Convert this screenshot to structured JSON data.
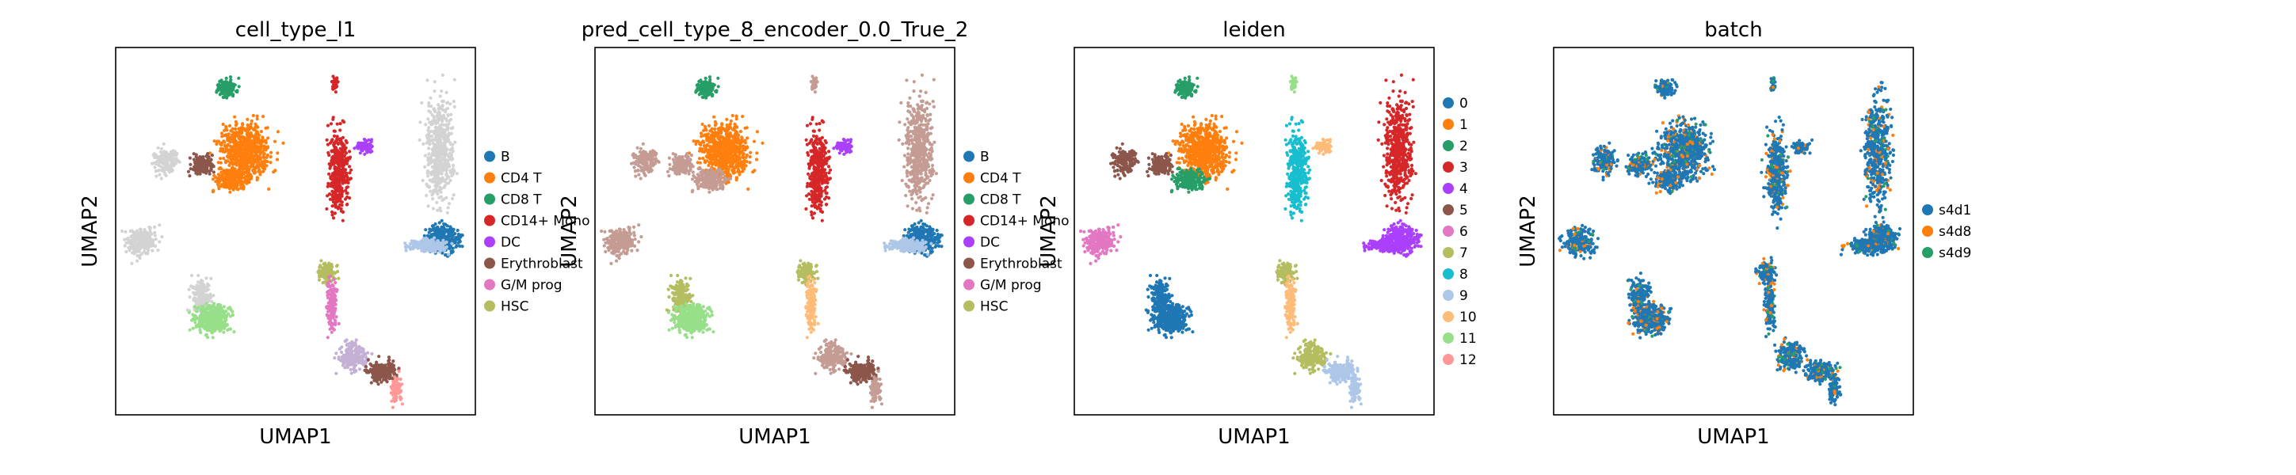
{
  "figure": {
    "background": "#ffffff"
  },
  "panels": [
    {
      "title": "cell_type_l1",
      "xlabel": "UMAP1",
      "ylabel": "UMAP2"
    },
    {
      "title": "pred_cell_type_8_encoder_0.0_True_2",
      "xlabel": "UMAP1",
      "ylabel": "UMAP2"
    },
    {
      "title": "leiden",
      "xlabel": "UMAP1",
      "ylabel": "UMAP2"
    },
    {
      "title": "batch",
      "xlabel": "UMAP1",
      "ylabel": "UMAP2"
    }
  ],
  "chart_data": [
    {
      "type": "scatter",
      "title": "cell_type_l1",
      "xlabel": "UMAP1",
      "ylabel": "UMAP2",
      "legend": "right",
      "grid": false,
      "categories": [
        "B",
        "CD4 T",
        "CD8 T",
        "CD14+ Mono",
        "DC",
        "Erythroblast",
        "G/M prog",
        "HSC"
      ],
      "colors": [
        "#1f77b4",
        "#ff7f0e",
        "#279e68",
        "#d62728",
        "#aa40fc",
        "#8c564b",
        "#e377c2",
        "#b5bd61"
      ],
      "unlabeled_color": "#d3d3d3",
      "clusters": [
        {
          "group": -1,
          "label": "light gray"
        },
        {
          "group": 1,
          "label": "CD4 T"
        },
        {
          "group": 2,
          "label": "CD8 T"
        },
        {
          "group": 3,
          "label": "CD14+ Mono"
        },
        {
          "group": 4,
          "label": "DC"
        },
        {
          "group": 0,
          "label": "B"
        },
        {
          "group": 6,
          "label": "G/M prog"
        },
        {
          "group": 7,
          "label": "HSC"
        },
        {
          "group": 5,
          "label": "Erythroblast"
        },
        {
          "group": 9,
          "label": "light green"
        },
        {
          "group": 10,
          "label": "light blue"
        }
      ]
    },
    {
      "type": "scatter",
      "title": "pred_cell_type_8_encoder_0.0_True_2",
      "xlabel": "UMAP1",
      "ylabel": "UMAP2",
      "legend": "right",
      "grid": false,
      "categories": [
        "B",
        "CD4 T",
        "CD8 T",
        "CD14+ Mono",
        "DC",
        "Erythroblast",
        "G/M prog",
        "HSC"
      ],
      "colors": [
        "#1f77b4",
        "#ff7f0e",
        "#279e68",
        "#d62728",
        "#aa40fc",
        "#8c564b",
        "#e377c2",
        "#b5bd61"
      ]
    },
    {
      "type": "scatter",
      "title": "leiden",
      "xlabel": "UMAP1",
      "ylabel": "UMAP2",
      "legend": "right",
      "grid": false,
      "categories": [
        "0",
        "1",
        "2",
        "3",
        "4",
        "5",
        "6",
        "7",
        "8",
        "9",
        "10",
        "11",
        "12"
      ],
      "colors": [
        "#1f77b4",
        "#ff7f0e",
        "#279e68",
        "#d62728",
        "#aa40fc",
        "#8c564b",
        "#e377c2",
        "#b5bd61",
        "#17becf",
        "#aec7e8",
        "#ffbb78",
        "#98df8a",
        "#ff9896"
      ]
    },
    {
      "type": "scatter",
      "title": "batch",
      "xlabel": "UMAP1",
      "ylabel": "UMAP2",
      "legend": "right",
      "grid": false,
      "categories": [
        "s4d1",
        "s4d8",
        "s4d9"
      ],
      "colors": [
        "#1f77b4",
        "#ff7f0e",
        "#279e68"
      ]
    }
  ]
}
